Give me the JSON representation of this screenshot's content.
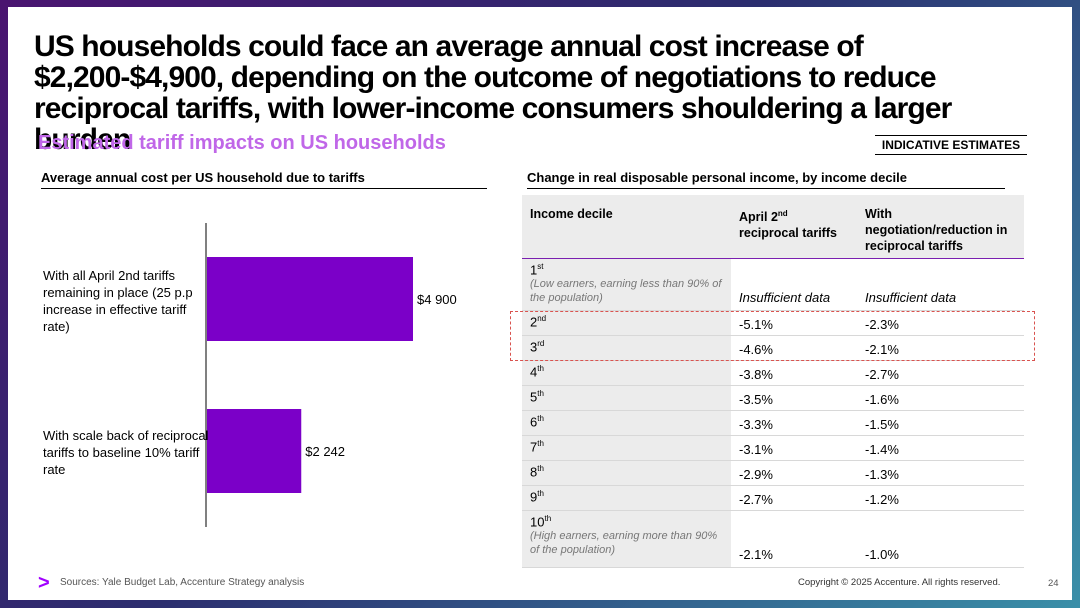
{
  "headline": "US households could face an average annual cost increase of $2,200-$4,900, depending on the outcome of negotiations to reduce reciprocal tariffs, with lower-income consumers shouldering a larger burden",
  "subhead": "Estimated tariff impacts on US households",
  "indicative_label": "INDICATIVE ESTIMATES",
  "left_title": "Average annual cost per US household due to tariffs",
  "right_title": "Change in real disposable personal income, by income decile",
  "colors": {
    "bar": "#7b00c8",
    "accent": "#a100ff",
    "subhead": "#c067e8",
    "highlight": "#d9534f"
  },
  "chart_data": {
    "type": "bar",
    "orientation": "horizontal",
    "title": "Average annual cost per US household due to tariffs",
    "categories": [
      "With all April 2nd tariffs remaining in place (25 p.p increase in effective tariff rate)",
      "With scale back of reciprocal tariffs to baseline 10% tariff rate"
    ],
    "values": [
      4900,
      2242
    ],
    "value_labels": [
      "$4 900",
      "$2 242"
    ],
    "xlim": [
      0,
      6000
    ],
    "grid": false
  },
  "bar_labels": [
    "With all April 2nd tariffs remaining in place (25 p.p increase in effective tariff rate)",
    "With scale back of reciprocal tariffs to baseline 10% tariff rate"
  ],
  "table": {
    "headers": {
      "decile": "Income decile",
      "april": "April 2",
      "april_sup": "nd",
      "april_rest": "reciprocal tariffs",
      "negotiation": "With negotiation/reduction in reciprocal tariffs"
    },
    "rows": [
      {
        "num": "1",
        "sup": "st",
        "note": "(Low earners, earning less than 90% of the population)",
        "april": "Insufficient data",
        "neg": "Insufficient data"
      },
      {
        "num": "2",
        "sup": "nd",
        "april": "-5.1%",
        "neg": "-2.3%"
      },
      {
        "num": "3",
        "sup": "rd",
        "april": "-4.6%",
        "neg": "-2.1%"
      },
      {
        "num": "4",
        "sup": "th",
        "april": "-3.8%",
        "neg": "-2.7%"
      },
      {
        "num": "5",
        "sup": "th",
        "april": "-3.5%",
        "neg": "-1.6%"
      },
      {
        "num": "6",
        "sup": "th",
        "april": "-3.3%",
        "neg": "-1.5%"
      },
      {
        "num": "7",
        "sup": "th",
        "april": "-3.1%",
        "neg": "-1.4%"
      },
      {
        "num": "8",
        "sup": "th",
        "april": "-2.9%",
        "neg": "-1.3%"
      },
      {
        "num": "9",
        "sup": "th",
        "april": "-2.7%",
        "neg": "-1.2%"
      },
      {
        "num": "10",
        "sup": "th",
        "note": "(High earners, earning more than 90% of the population)",
        "april": "-2.1%",
        "neg": "-1.0%"
      }
    ]
  },
  "footer": {
    "logo_icon": ">",
    "source": "Sources: Yale Budget Lab, Accenture Strategy analysis",
    "copyright": "Copyright © 2025 Accenture. All rights reserved.",
    "page": "24"
  }
}
